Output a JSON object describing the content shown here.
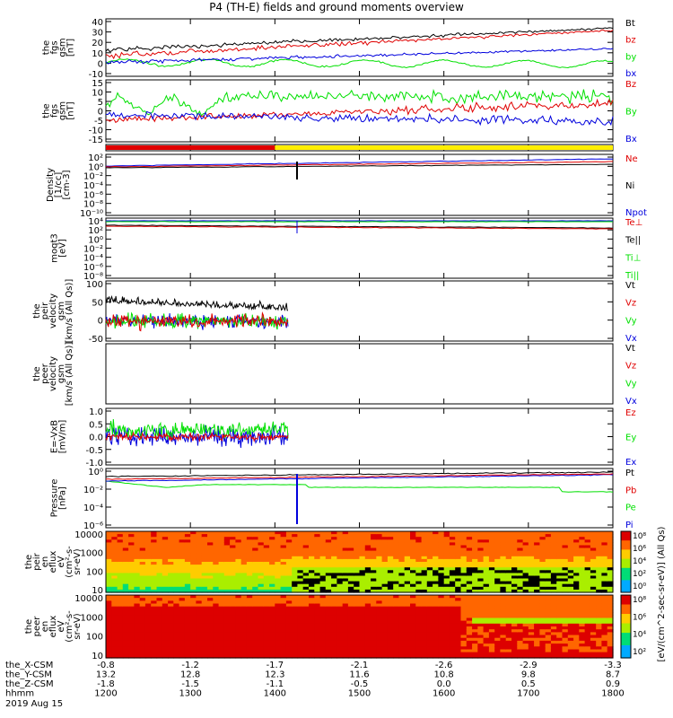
{
  "title": "P4 (TH-E) fields and ground moments overview",
  "footer": {
    "rows": [
      {
        "label": "the_X-CSM",
        "values": [
          "-0.8",
          "-1.2",
          "-1.7",
          "-2.1",
          "-2.6",
          "-2.9",
          "-3.3"
        ]
      },
      {
        "label": "the_Y-CSM",
        "values": [
          "13.2",
          "12.8",
          "12.3",
          "11.6",
          "10.8",
          "9.8",
          "8.7"
        ]
      },
      {
        "label": "the_Z-CSM",
        "values": [
          "-1.8",
          "-1.5",
          "-1.1",
          "-0.5",
          "0.0",
          "0.5",
          "0.9"
        ]
      },
      {
        "label": "hhmm",
        "values": [
          "1200",
          "1300",
          "1400",
          "1500",
          "1600",
          "1700",
          "1800"
        ]
      }
    ],
    "date": "2019 Aug 15"
  },
  "colorbar_label": "[eV/(cm^2-sec-sr-eV)] (All Qs)",
  "colorbar_ticks": [
    "10⁸",
    "10⁶",
    "10⁴",
    "10²",
    "10⁰",
    "10⁸",
    "10⁶",
    "10⁴",
    "10²"
  ],
  "chart_data": [
    {
      "type": "line",
      "ylabel": [
        "the",
        "fgs",
        "gsm",
        "[nT]"
      ],
      "ylim": [
        -10,
        40
      ],
      "yticks": [
        "40",
        "30",
        "20",
        "10",
        "0",
        "-10"
      ],
      "legend": [
        {
          "name": "Bt",
          "color": "#000000"
        },
        {
          "name": "bz",
          "color": "#e00000"
        },
        {
          "name": "by",
          "color": "#00e000"
        },
        {
          "name": "bx",
          "color": "#0000dd"
        }
      ],
      "series": [
        {
          "name": "Bt",
          "approx": "10 to 32 nT, oscillating early"
        },
        {
          "name": "bz",
          "approx": "5 to 30 nT"
        },
        {
          "name": "by",
          "approx": "~2 nT"
        },
        {
          "name": "bx",
          "approx": "0 to 15 nT"
        }
      ]
    },
    {
      "type": "line",
      "ylabel": [
        "the",
        "fgs",
        "gsm",
        "[nT]"
      ],
      "ylim": [
        -17,
        17
      ],
      "yticks": [
        "15",
        "10",
        "5",
        "0",
        "-5",
        "-10",
        "-15"
      ],
      "legend": [
        {
          "name": "Bz",
          "color": "#e00000"
        },
        {
          "name": "By",
          "color": "#00e000"
        },
        {
          "name": "Bx",
          "color": "#0000dd"
        }
      ]
    },
    {
      "type": "bar",
      "ylabel": [],
      "annotation": "red until ~1400, yellow after"
    },
    {
      "type": "line",
      "ylabel": [
        "Density",
        "[1/cc]",
        "[cm-3]"
      ],
      "log": true,
      "yticks": [
        "10²",
        "10⁰",
        "10⁻²",
        "10⁻⁴",
        "10⁻⁶",
        "10⁻⁸",
        "10⁻¹⁰"
      ],
      "legend": [
        {
          "name": "Ne",
          "color": "#e00000"
        },
        {
          "name": "Ni",
          "color": "#000000"
        },
        {
          "name": "Npot",
          "color": "#0000dd"
        }
      ]
    },
    {
      "type": "line",
      "ylabel": [
        "moqt3",
        "[eV]"
      ],
      "log": true,
      "yticks": [
        "10⁴",
        "10²",
        "10⁰",
        "10⁻²",
        "10⁻⁴",
        "10⁻⁶",
        "10⁻⁸"
      ],
      "legend": [
        {
          "name": "Te⊥",
          "color": "#e00000"
        },
        {
          "name": "Te||",
          "color": "#000000"
        },
        {
          "name": "Ti⊥",
          "color": "#00e000"
        },
        {
          "name": "Ti||",
          "color": "#00e000"
        }
      ]
    },
    {
      "type": "line",
      "ylabel": [
        "the",
        "peir",
        "velocity",
        "gsm",
        "[km/s (All Qs)]"
      ],
      "ylim": [
        -50,
        100
      ],
      "yticks": [
        "100",
        "50",
        "0",
        "-50"
      ],
      "legend": [
        {
          "name": "Vt",
          "color": "#000000"
        },
        {
          "name": "Vz",
          "color": "#e00000"
        },
        {
          "name": "Vy",
          "color": "#00e000"
        },
        {
          "name": "Vx",
          "color": "#0000dd"
        }
      ]
    },
    {
      "type": "line",
      "ylabel": [
        "the",
        "peer",
        "velocity",
        "gsm",
        "[km/s (All Qs)]"
      ],
      "yticks": [],
      "legend": [
        {
          "name": "Vt",
          "color": "#000000"
        },
        {
          "name": "Vz",
          "color": "#e00000"
        },
        {
          "name": "Vy",
          "color": "#00e000"
        },
        {
          "name": "Vx",
          "color": "#0000dd"
        }
      ]
    },
    {
      "type": "line",
      "ylabel": [
        "E=-VxB",
        "[mV/m]"
      ],
      "ylim": [
        -1.1,
        1.1
      ],
      "yticks": [
        "1.0",
        "0.5",
        "0.0",
        "-0.5",
        "-1.0"
      ],
      "legend": [
        {
          "name": "Ez",
          "color": "#e00000"
        },
        {
          "name": "Ey",
          "color": "#00e000"
        },
        {
          "name": "Ex",
          "color": "#0000dd"
        }
      ]
    },
    {
      "type": "line",
      "ylabel": [
        "Pressure",
        "[nPa]"
      ],
      "log": true,
      "yticks": [
        "10⁰",
        "10⁻²",
        "10⁻⁴",
        "10⁻⁶"
      ],
      "legend": [
        {
          "name": "Pt",
          "color": "#000000"
        },
        {
          "name": "Pb",
          "color": "#e00000"
        },
        {
          "name": "Pe",
          "color": "#00e000"
        },
        {
          "name": "Pi",
          "color": "#0000dd"
        }
      ]
    },
    {
      "type": "heatmap",
      "ylabel": [
        "the",
        "peir",
        "en",
        "eflux",
        "eV",
        "(cm²-s-",
        "sr-eV)"
      ],
      "log": true,
      "yticks": [
        "10000",
        "1000",
        "100",
        "10"
      ]
    },
    {
      "type": "heatmap",
      "ylabel": [
        "the",
        "peer",
        "en",
        "eflux",
        "eV",
        "(cm²-s-",
        "sr-eV)"
      ],
      "log": true,
      "yticks": [
        "10000",
        "1000",
        "100",
        "10"
      ]
    }
  ]
}
